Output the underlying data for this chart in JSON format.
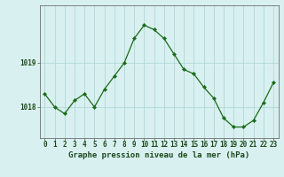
{
  "x": [
    0,
    1,
    2,
    3,
    4,
    5,
    6,
    7,
    8,
    9,
    10,
    11,
    12,
    13,
    14,
    15,
    16,
    17,
    18,
    19,
    20,
    21,
    22,
    23
  ],
  "y": [
    1018.3,
    1018.0,
    1017.85,
    1018.15,
    1018.3,
    1018.0,
    1018.4,
    1018.7,
    1019.0,
    1019.55,
    1019.85,
    1019.75,
    1019.55,
    1019.2,
    1018.85,
    1018.75,
    1018.45,
    1018.2,
    1017.75,
    1017.55,
    1017.55,
    1017.7,
    1018.1,
    1018.55
  ],
  "line_color": "#1a6b1a",
  "marker": "D",
  "marker_size": 2.2,
  "bg_color": "#d9f0f0",
  "grid_color": "#b0d8d8",
  "ylabel_ticks": [
    1018,
    1019
  ],
  "xlabel_label": "Graphe pression niveau de la mer (hPa)",
  "xlim": [
    -0.5,
    23.5
  ],
  "ylim": [
    1017.3,
    1020.3
  ],
  "label_fontsize": 6.5,
  "tick_fontsize": 5.5
}
